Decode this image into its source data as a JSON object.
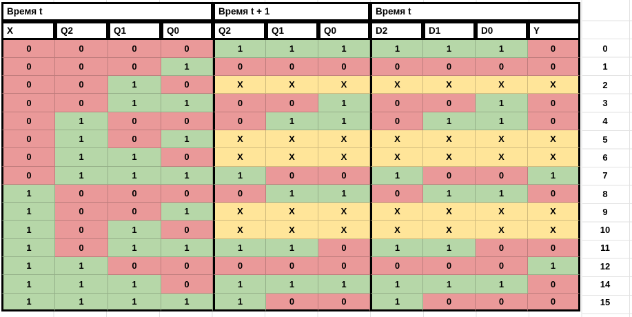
{
  "app": {
    "type": "spreadsheet-truth-table"
  },
  "colors": {
    "zero_cell": "#ea9999",
    "one_cell": "#b6d7a8",
    "dont_care_cell": "#ffe599",
    "table_border": "#000000",
    "sheet_gridline": "#e2e2e2"
  },
  "header": {
    "groups": [
      {
        "label": "Время t",
        "span": 4
      },
      {
        "label": "Время t + 1",
        "span": 3
      },
      {
        "label": "Время t",
        "span": 4
      }
    ],
    "columns": [
      "X",
      "Q2",
      "Q1",
      "Q0",
      "Q2",
      "Q1",
      "Q0",
      "D2",
      "D1",
      "D0",
      "Y"
    ]
  },
  "rows": [
    {
      "label": "0",
      "cells": [
        "0",
        "0",
        "0",
        "0",
        "1",
        "1",
        "1",
        "1",
        "1",
        "1",
        "0"
      ]
    },
    {
      "label": "1",
      "cells": [
        "0",
        "0",
        "0",
        "1",
        "0",
        "0",
        "0",
        "0",
        "0",
        "0",
        "0"
      ]
    },
    {
      "label": "2",
      "cells": [
        "0",
        "0",
        "1",
        "0",
        "X",
        "X",
        "X",
        "X",
        "X",
        "X",
        "X"
      ]
    },
    {
      "label": "3",
      "cells": [
        "0",
        "0",
        "1",
        "1",
        "0",
        "0",
        "1",
        "0",
        "0",
        "1",
        "0"
      ]
    },
    {
      "label": "4",
      "cells": [
        "0",
        "1",
        "0",
        "0",
        "0",
        "1",
        "1",
        "0",
        "1",
        "1",
        "0"
      ]
    },
    {
      "label": "5",
      "cells": [
        "0",
        "1",
        "0",
        "1",
        "X",
        "X",
        "X",
        "X",
        "X",
        "X",
        "X"
      ]
    },
    {
      "label": "6",
      "cells": [
        "0",
        "1",
        "1",
        "0",
        "X",
        "X",
        "X",
        "X",
        "X",
        "X",
        "X"
      ]
    },
    {
      "label": "7",
      "cells": [
        "0",
        "1",
        "1",
        "1",
        "1",
        "0",
        "0",
        "1",
        "0",
        "0",
        "1"
      ]
    },
    {
      "label": "8",
      "cells": [
        "1",
        "0",
        "0",
        "0",
        "0",
        "1",
        "1",
        "0",
        "1",
        "1",
        "0"
      ]
    },
    {
      "label": "9",
      "cells": [
        "1",
        "0",
        "0",
        "1",
        "X",
        "X",
        "X",
        "X",
        "X",
        "X",
        "X"
      ]
    },
    {
      "label": "10",
      "cells": [
        "1",
        "0",
        "1",
        "0",
        "X",
        "X",
        "X",
        "X",
        "X",
        "X",
        "X"
      ]
    },
    {
      "label": "11",
      "cells": [
        "1",
        "0",
        "1",
        "1",
        "1",
        "1",
        "0",
        "1",
        "1",
        "0",
        "0"
      ]
    },
    {
      "label": "12",
      "cells": [
        "1",
        "1",
        "0",
        "0",
        "0",
        "0",
        "0",
        "0",
        "0",
        "0",
        "1"
      ]
    },
    {
      "label": "14",
      "cells": [
        "1",
        "1",
        "1",
        "0",
        "1",
        "1",
        "1",
        "1",
        "1",
        "1",
        "0"
      ]
    },
    {
      "label": "15",
      "cells": [
        "1",
        "1",
        "1",
        "1",
        "1",
        "0",
        "0",
        "1",
        "0",
        "0",
        "0"
      ]
    }
  ]
}
